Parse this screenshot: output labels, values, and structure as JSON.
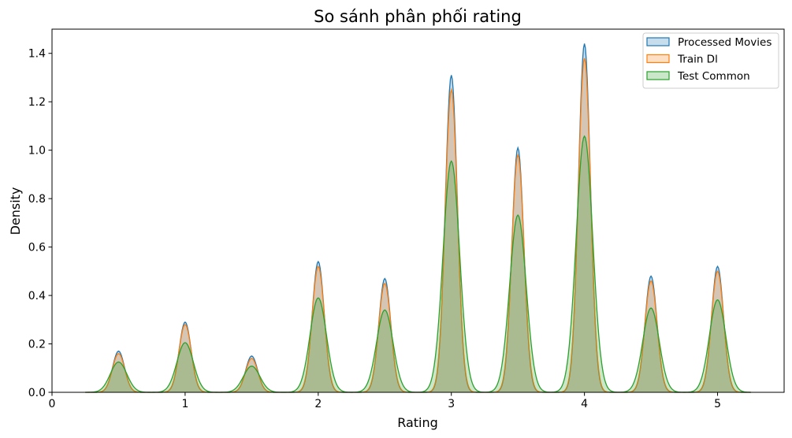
{
  "chart_data": {
    "type": "area",
    "title": "So sánh phân phối rating",
    "xlabel": "Rating",
    "ylabel": "Density",
    "xlim": [
      0,
      5.5
    ],
    "ylim": [
      0,
      1.5
    ],
    "xticks": [
      0,
      1,
      2,
      3,
      4,
      5
    ],
    "yticks": [
      0.0,
      0.2,
      0.4,
      0.6,
      0.8,
      1.0,
      1.2,
      1.4
    ],
    "xtick_labels": [
      "0",
      "1",
      "2",
      "3",
      "4",
      "5"
    ],
    "ytick_labels": [
      "0.0",
      "0.2",
      "0.4",
      "0.6",
      "0.8",
      "1.0",
      "1.2",
      "1.4"
    ],
    "grid": false,
    "legend_position": "top-right",
    "x_range": [
      0.25,
      5.25
    ],
    "peak_ratings": [
      0.5,
      1.0,
      1.5,
      2.0,
      2.5,
      3.0,
      3.5,
      4.0,
      4.5,
      5.0
    ],
    "series": [
      {
        "name": "Processed Movies",
        "color": "#1f77b4",
        "peak_densities": [
          0.17,
          0.29,
          0.15,
          0.54,
          0.47,
          1.31,
          1.01,
          1.44,
          0.48,
          0.52
        ],
        "bandwidth": 0.045
      },
      {
        "name": "Train Dl",
        "color": "#ff7f0e",
        "peak_densities": [
          0.16,
          0.28,
          0.14,
          0.52,
          0.45,
          1.25,
          0.98,
          1.38,
          0.46,
          0.5
        ],
        "bandwidth": 0.046
      },
      {
        "name": "Test Common",
        "color": "#2ca02c",
        "peak_densities": [
          0.125,
          0.205,
          0.108,
          0.39,
          0.34,
          0.955,
          0.732,
          1.058,
          0.348,
          0.382
        ],
        "bandwidth": 0.062
      }
    ]
  }
}
